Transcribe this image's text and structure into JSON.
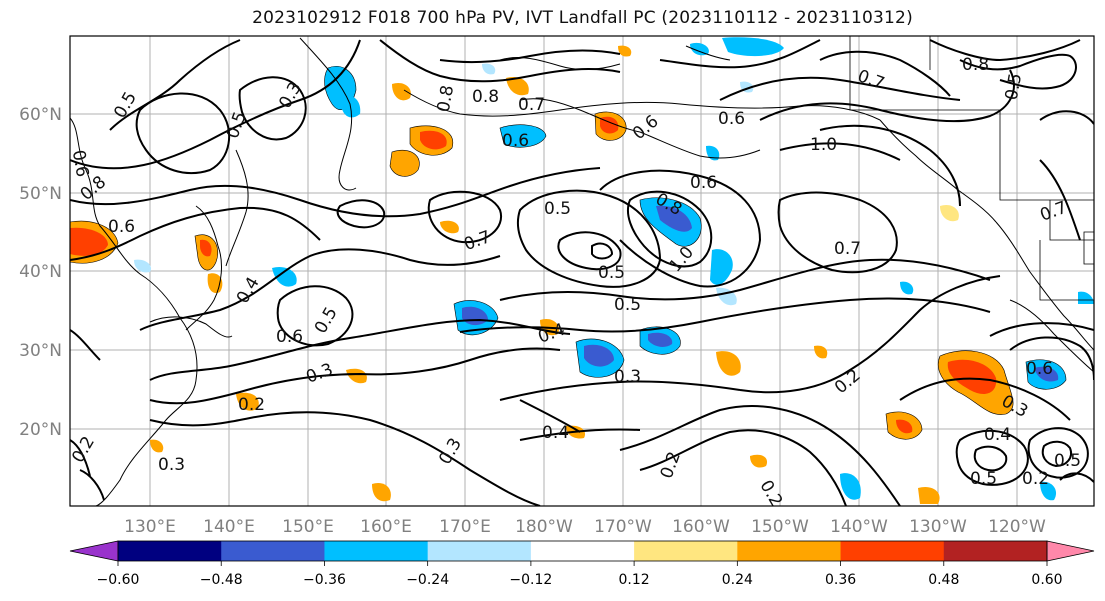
{
  "title": "2023102912 F018 700 hPa PV, IVT Landfall PC (2023110112 - 2023110312)",
  "map": {
    "lon_labels": [
      "130°E",
      "140°E",
      "150°E",
      "160°E",
      "170°E",
      "180°W",
      "170°W",
      "160°W",
      "150°W",
      "140°W",
      "130°W",
      "120°W"
    ],
    "lat_labels": [
      "60°N",
      "50°N",
      "40°N",
      "30°N",
      "20°N"
    ],
    "contour_labels": [
      "0.5",
      "0.3",
      "0.5",
      "0.6",
      "0.8",
      "0.6",
      "0.8",
      "0.7",
      "0.6",
      "0.6",
      "0.8",
      "0.7",
      "0.6",
      "0.7",
      "1.0",
      "0.8",
      "0.5",
      "0.6",
      "0.8",
      "1.0",
      "0.5",
      "0.7",
      "0.5",
      "0.4",
      "0.5",
      "0.6",
      "0.5",
      "0.4",
      "0.3",
      "0.3",
      "0.3",
      "0.2",
      "0.2",
      "0.4",
      "0.2",
      "0.2",
      "0.4",
      "0.6",
      "0.5",
      "0.3",
      "0.2",
      "0.5",
      "0.3",
      "0.2",
      "0.7"
    ]
  },
  "colorbar": {
    "ticks": [
      "−0.60",
      "−0.48",
      "−0.36",
      "−0.24",
      "−0.12",
      "0.12",
      "0.24",
      "0.36",
      "0.48",
      "0.60"
    ],
    "colors": [
      "#9933cc",
      "#000080",
      "#3a5bd0",
      "#00bfff",
      "#b3e6ff",
      "#ffffff",
      "#ffe680",
      "#ffa500",
      "#ff4000",
      "#b22222",
      "#ff88aa"
    ]
  }
}
